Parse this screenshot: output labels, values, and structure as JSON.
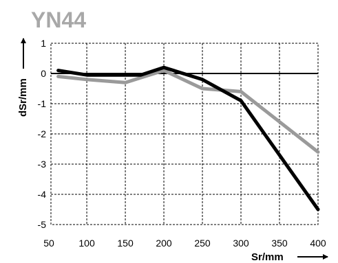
{
  "chart_data": {
    "type": "line",
    "title": "YN44",
    "xlabel": "Sr/mm",
    "ylabel": "dSr/mm",
    "xlim": [
      50,
      400
    ],
    "ylim": [
      -5,
      1
    ],
    "x_ticks": [
      50,
      100,
      150,
      200,
      250,
      300,
      350,
      400
    ],
    "y_ticks": [
      1,
      0,
      -1,
      -2,
      -3,
      -4,
      -5
    ],
    "grid": true,
    "legend": "none",
    "series": [
      {
        "color": "#000000",
        "x": [
          63,
          100,
          150,
          170,
          200,
          250,
          300,
          400
        ],
        "y": [
          0.1,
          -0.05,
          -0.05,
          -0.05,
          0.2,
          -0.2,
          -0.9,
          -4.5
        ]
      },
      {
        "color": "#9a9a9a",
        "x": [
          63,
          100,
          150,
          200,
          250,
          300,
          400
        ],
        "y": [
          -0.1,
          -0.2,
          -0.3,
          0.1,
          -0.5,
          -0.6,
          -2.6
        ]
      }
    ]
  }
}
